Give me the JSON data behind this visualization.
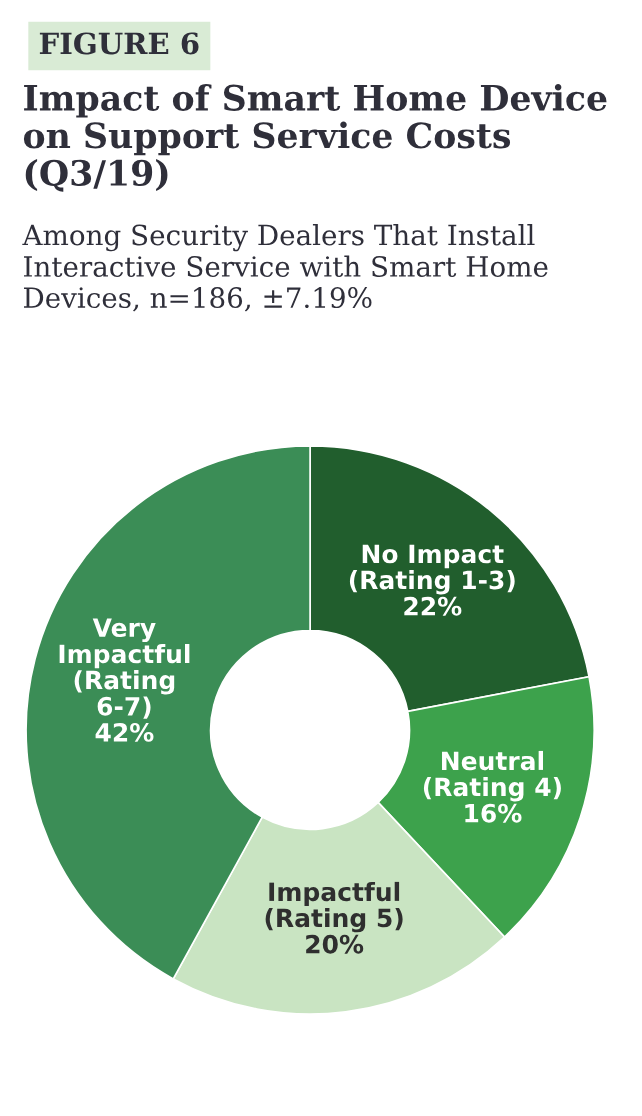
{
  "chart_data": {
    "type": "donut",
    "title": "Impact of Smart Home Device on Support Service Costs (Q3/19)",
    "subtitle": "Among Security Dealers That Install Interactive Service with Smart Home Devices, n=186, ±7.19%",
    "annotations": [
      "FIGURE 6"
    ],
    "categories": [
      "No Impact\n(Rating 1-3)",
      "Neutral\n(Rating 4)",
      "Impactful\n(Rating 5)",
      "Very\nImpactful\n(Rating\n6-7)"
    ],
    "values": [
      22,
      16,
      20,
      42
    ],
    "colors": [
      "#215e2d",
      "#3da24c",
      "#c9e4c2",
      "#3b8d56"
    ],
    "value_labels": [
      "22%",
      "16%",
      "20%",
      "42%"
    ],
    "legend": false
  }
}
